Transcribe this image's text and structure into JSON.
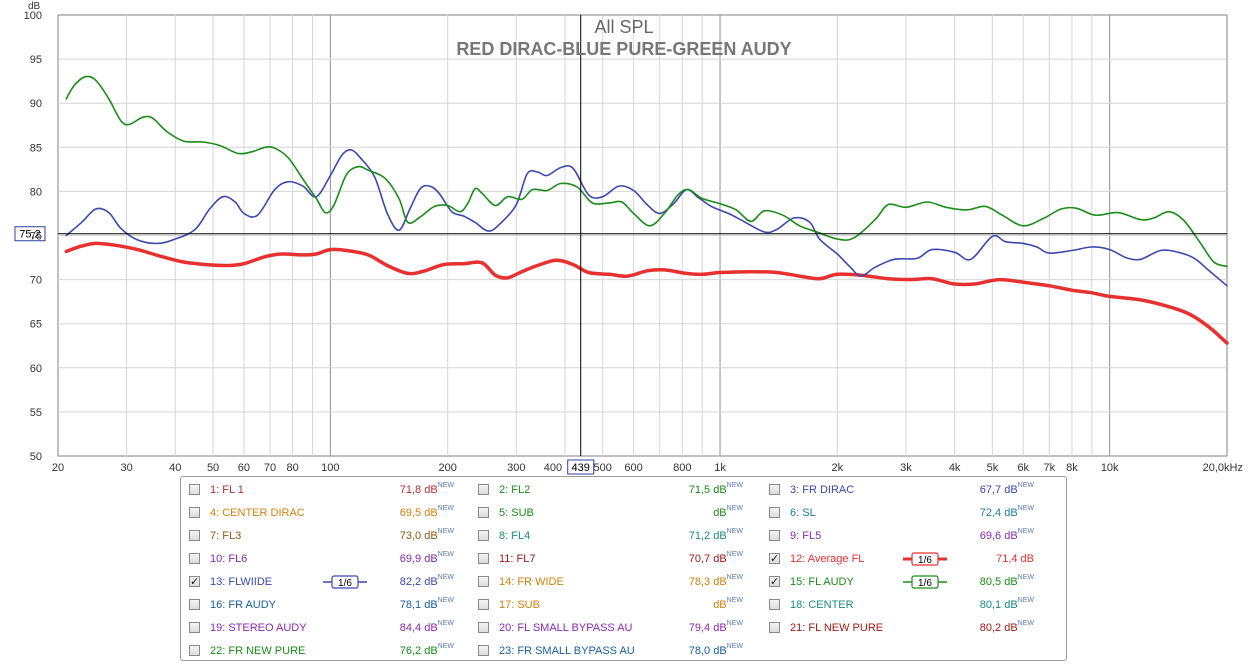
{
  "chart_data": {
    "type": "line",
    "title": "All SPL",
    "subtitle": "RED DIRAC-BLUE PURE-GREEN AUDY",
    "ylabel": "dB",
    "xlabel": "",
    "x_scale": "log",
    "xlim": [
      20,
      20000
    ],
    "ylim": [
      50,
      100
    ],
    "grid": true,
    "y_ticks": [
      "50",
      "55",
      "60",
      "65",
      "70",
      "75",
      "80",
      "85",
      "90",
      "95",
      "100"
    ],
    "x_ticks": [
      {
        "v": 20,
        "label": "20"
      },
      {
        "v": 30,
        "label": "30"
      },
      {
        "v": 40,
        "label": "40"
      },
      {
        "v": 50,
        "label": "50"
      },
      {
        "v": 60,
        "label": "60"
      },
      {
        "v": 70,
        "label": "70"
      },
      {
        "v": 80,
        "label": "80"
      },
      {
        "v": 100,
        "label": "100"
      },
      {
        "v": 200,
        "label": "200"
      },
      {
        "v": 300,
        "label": "300"
      },
      {
        "v": 400,
        "label": "400"
      },
      {
        "v": 500,
        "label": "500"
      },
      {
        "v": 600,
        "label": "600"
      },
      {
        "v": 800,
        "label": "800"
      },
      {
        "v": 1000,
        "label": "1k"
      },
      {
        "v": 2000,
        "label": "2k"
      },
      {
        "v": 3000,
        "label": "3k"
      },
      {
        "v": 4000,
        "label": "4k"
      },
      {
        "v": 5000,
        "label": "5k"
      },
      {
        "v": 6000,
        "label": "6k"
      },
      {
        "v": 7000,
        "label": "7k"
      },
      {
        "v": 8000,
        "label": "8k"
      },
      {
        "v": 10000,
        "label": "10k"
      },
      {
        "v": 20000,
        "label": "20,0kHz"
      }
    ],
    "cursor": {
      "x": 439,
      "x_label": "439",
      "y": 75.2,
      "y_label": "75,2"
    },
    "series": [
      {
        "name": "12: Average FL",
        "color": "#e83030",
        "width": 3.5,
        "points": [
          [
            21,
            73.2
          ],
          [
            23,
            73.8
          ],
          [
            25,
            74.1
          ],
          [
            28,
            73.9
          ],
          [
            32,
            73.4
          ],
          [
            37,
            72.6
          ],
          [
            42,
            72.0
          ],
          [
            48,
            71.7
          ],
          [
            55,
            71.6
          ],
          [
            60,
            71.8
          ],
          [
            68,
            72.6
          ],
          [
            75,
            72.9
          ],
          [
            85,
            72.8
          ],
          [
            92,
            72.9
          ],
          [
            100,
            73.4
          ],
          [
            110,
            73.3
          ],
          [
            125,
            72.8
          ],
          [
            140,
            71.6
          ],
          [
            158,
            70.7
          ],
          [
            175,
            71.0
          ],
          [
            195,
            71.7
          ],
          [
            220,
            71.8
          ],
          [
            245,
            71.9
          ],
          [
            265,
            70.5
          ],
          [
            285,
            70.2
          ],
          [
            310,
            70.9
          ],
          [
            340,
            71.6
          ],
          [
            380,
            72.2
          ],
          [
            420,
            71.7
          ],
          [
            460,
            70.8
          ],
          [
            520,
            70.6
          ],
          [
            580,
            70.4
          ],
          [
            650,
            71.0
          ],
          [
            720,
            71.1
          ],
          [
            820,
            70.7
          ],
          [
            900,
            70.6
          ],
          [
            1000,
            70.8
          ],
          [
            1200,
            70.9
          ],
          [
            1400,
            70.8
          ],
          [
            1600,
            70.4
          ],
          [
            1800,
            70.1
          ],
          [
            2000,
            70.6
          ],
          [
            2300,
            70.5
          ],
          [
            2700,
            70.1
          ],
          [
            3100,
            70.0
          ],
          [
            3500,
            70.1
          ],
          [
            4000,
            69.5
          ],
          [
            4500,
            69.5
          ],
          [
            5200,
            70.0
          ],
          [
            6000,
            69.7
          ],
          [
            7000,
            69.3
          ],
          [
            8000,
            68.8
          ],
          [
            9000,
            68.5
          ],
          [
            10000,
            68.1
          ],
          [
            12000,
            67.7
          ],
          [
            14000,
            67.0
          ],
          [
            16000,
            66.1
          ],
          [
            18000,
            64.6
          ],
          [
            20000,
            62.8
          ]
        ]
      },
      {
        "name": "13: FLWIIDE",
        "color": "#3b48b0",
        "width": 1.6,
        "points": [
          [
            21,
            75.0
          ],
          [
            23,
            76.5
          ],
          [
            25,
            78.0
          ],
          [
            27,
            77.6
          ],
          [
            29,
            75.8
          ],
          [
            32,
            74.5
          ],
          [
            36,
            74.1
          ],
          [
            40,
            74.6
          ],
          [
            45,
            75.7
          ],
          [
            49,
            78.0
          ],
          [
            53,
            79.4
          ],
          [
            57,
            78.8
          ],
          [
            60,
            77.5
          ],
          [
            65,
            77.3
          ],
          [
            72,
            80.2
          ],
          [
            78,
            81.1
          ],
          [
            85,
            80.6
          ],
          [
            92,
            79.4
          ],
          [
            100,
            81.8
          ],
          [
            107,
            84.1
          ],
          [
            113,
            84.7
          ],
          [
            120,
            83.7
          ],
          [
            130,
            81.6
          ],
          [
            140,
            77.5
          ],
          [
            150,
            75.6
          ],
          [
            160,
            78.0
          ],
          [
            170,
            80.3
          ],
          [
            180,
            80.6
          ],
          [
            190,
            79.8
          ],
          [
            205,
            77.7
          ],
          [
            220,
            77.2
          ],
          [
            235,
            76.5
          ],
          [
            255,
            75.5
          ],
          [
            275,
            76.5
          ],
          [
            300,
            78.5
          ],
          [
            320,
            82.0
          ],
          [
            340,
            82.2
          ],
          [
            360,
            81.8
          ],
          [
            390,
            82.7
          ],
          [
            420,
            82.6
          ],
          [
            460,
            79.6
          ],
          [
            500,
            79.4
          ],
          [
            550,
            80.6
          ],
          [
            600,
            80.1
          ],
          [
            650,
            78.5
          ],
          [
            700,
            77.5
          ],
          [
            760,
            78.6
          ],
          [
            820,
            80.2
          ],
          [
            880,
            79.3
          ],
          [
            950,
            78.3
          ],
          [
            1050,
            77.5
          ],
          [
            1150,
            76.6
          ],
          [
            1300,
            75.4
          ],
          [
            1400,
            75.7
          ],
          [
            1550,
            77.0
          ],
          [
            1700,
            76.5
          ],
          [
            1800,
            74.6
          ],
          [
            2000,
            72.9
          ],
          [
            2150,
            71.5
          ],
          [
            2300,
            70.4
          ],
          [
            2500,
            71.4
          ],
          [
            2800,
            72.3
          ],
          [
            3200,
            72.4
          ],
          [
            3500,
            73.4
          ],
          [
            4000,
            73.1
          ],
          [
            4400,
            72.3
          ],
          [
            5000,
            74.9
          ],
          [
            5400,
            74.3
          ],
          [
            6000,
            74.1
          ],
          [
            6500,
            73.7
          ],
          [
            7000,
            73.0
          ],
          [
            8000,
            73.3
          ],
          [
            9000,
            73.7
          ],
          [
            10000,
            73.4
          ],
          [
            11000,
            72.5
          ],
          [
            12000,
            72.3
          ],
          [
            13500,
            73.3
          ],
          [
            15000,
            73.1
          ],
          [
            16500,
            72.4
          ],
          [
            18000,
            71.0
          ],
          [
            20000,
            69.3
          ]
        ]
      },
      {
        "name": "15: FL AUDY",
        "color": "#1a8c1a",
        "width": 1.6,
        "points": [
          [
            21,
            90.5
          ],
          [
            22,
            92.0
          ],
          [
            23.5,
            93.0
          ],
          [
            25,
            92.6
          ],
          [
            27,
            90.5
          ],
          [
            29,
            88.0
          ],
          [
            30.5,
            87.6
          ],
          [
            33,
            88.4
          ],
          [
            35,
            88.3
          ],
          [
            38,
            86.8
          ],
          [
            42,
            85.7
          ],
          [
            47,
            85.6
          ],
          [
            52,
            85.2
          ],
          [
            58,
            84.3
          ],
          [
            63,
            84.5
          ],
          [
            68,
            85.0
          ],
          [
            72,
            84.9
          ],
          [
            78,
            83.8
          ],
          [
            85,
            81.4
          ],
          [
            92,
            79.2
          ],
          [
            97,
            77.6
          ],
          [
            102,
            78.4
          ],
          [
            110,
            81.9
          ],
          [
            118,
            82.8
          ],
          [
            125,
            82.4
          ],
          [
            138,
            81.5
          ],
          [
            150,
            79.2
          ],
          [
            158,
            76.5
          ],
          [
            170,
            77.1
          ],
          [
            185,
            78.3
          ],
          [
            200,
            78.4
          ],
          [
            215,
            77.7
          ],
          [
            225,
            78.6
          ],
          [
            235,
            80.3
          ],
          [
            245,
            79.8
          ],
          [
            265,
            78.4
          ],
          [
            285,
            79.4
          ],
          [
            310,
            79.1
          ],
          [
            330,
            80.2
          ],
          [
            360,
            80.1
          ],
          [
            390,
            80.9
          ],
          [
            430,
            80.5
          ],
          [
            470,
            78.7
          ],
          [
            520,
            78.7
          ],
          [
            560,
            78.8
          ],
          [
            600,
            77.5
          ],
          [
            660,
            76.1
          ],
          [
            720,
            77.5
          ],
          [
            780,
            79.6
          ],
          [
            830,
            80.2
          ],
          [
            900,
            79.2
          ],
          [
            1000,
            78.6
          ],
          [
            1100,
            77.9
          ],
          [
            1200,
            76.6
          ],
          [
            1300,
            77.8
          ],
          [
            1450,
            77.3
          ],
          [
            1600,
            76.1
          ],
          [
            1800,
            75.3
          ],
          [
            2000,
            74.6
          ],
          [
            2200,
            74.7
          ],
          [
            2500,
            76.8
          ],
          [
            2700,
            78.5
          ],
          [
            3000,
            78.2
          ],
          [
            3400,
            78.8
          ],
          [
            3800,
            78.2
          ],
          [
            4300,
            77.9
          ],
          [
            4800,
            78.3
          ],
          [
            5300,
            77.3
          ],
          [
            6000,
            76.1
          ],
          [
            6800,
            77.0
          ],
          [
            7500,
            78.0
          ],
          [
            8200,
            78.1
          ],
          [
            9200,
            77.3
          ],
          [
            10500,
            77.6
          ],
          [
            12000,
            76.8
          ],
          [
            13000,
            77.0
          ],
          [
            14200,
            77.7
          ],
          [
            15500,
            76.7
          ],
          [
            17000,
            74.3
          ],
          [
            18500,
            72.0
          ],
          [
            20000,
            71.5
          ]
        ]
      }
    ]
  },
  "legend": {
    "rows": [
      [
        {
          "label": "1: FL 1",
          "value": "71,8 dB",
          "sup": "NEW",
          "color": "#b03030",
          "checked": false
        },
        {
          "label": "2: FL2",
          "value": "71,5 dB",
          "sup": "NEW",
          "color": "#1a8c1a",
          "checked": false
        },
        {
          "label": "3: FR DIRAC",
          "value": "67,7 dB",
          "sup": "NEW",
          "color": "#3b48b0",
          "checked": false
        }
      ],
      [
        {
          "label": "4: CENTER DIRAC",
          "value": "69,5 dB",
          "sup": "NEW",
          "color": "#d47f0e",
          "checked": false
        },
        {
          "label": "5: SUB",
          "value": "dB",
          "sup": "NEW",
          "color": "#1a8c1a",
          "checked": false
        },
        {
          "label": "6: SL",
          "value": "72,4 dB",
          "sup": "NEW",
          "color": "#1a7fa0",
          "checked": false
        }
      ],
      [
        {
          "label": "7: FL3",
          "value": "73,0 dB",
          "sup": "NEW",
          "color": "#8a5a16",
          "checked": false
        },
        {
          "label": "8: FL4",
          "value": "71,2 dB",
          "sup": "NEW",
          "color": "#1a8c7c",
          "checked": false
        },
        {
          "label": "9: FL5",
          "value": "69,6 dB",
          "sup": "NEW",
          "color": "#8a2ab0",
          "checked": false
        }
      ],
      [
        {
          "label": "10: FL6",
          "value": "69,9 dB",
          "sup": "NEW",
          "color": "#8a2ab0",
          "checked": false
        },
        {
          "label": "11: FL7",
          "value": "70,7 dB",
          "sup": "NEW",
          "color": "#a01a1a",
          "checked": false
        },
        {
          "label": "12: Average FL",
          "value": "71,4 dB",
          "sup": "",
          "color": "#e83030",
          "checked": true,
          "smooth": "1/6"
        }
      ],
      [
        {
          "label": "13: FLWIIDE",
          "value": "82,2 dB",
          "sup": "NEW",
          "color": "#3b48b0",
          "checked": true,
          "smooth": "1/6"
        },
        {
          "label": "14: FR WIDE",
          "value": "78,3 dB",
          "sup": "NEW",
          "color": "#d47f0e",
          "checked": false
        },
        {
          "label": "15: FL AUDY",
          "value": "80,5 dB",
          "sup": "NEW",
          "color": "#1a8c1a",
          "checked": true,
          "smooth": "1/6"
        }
      ],
      [
        {
          "label": "16: FR AUDY",
          "value": "78,1 dB",
          "sup": "NEW",
          "color": "#1a5fa0",
          "checked": false
        },
        {
          "label": "17: SUB",
          "value": "dB",
          "sup": "NEW",
          "color": "#d47f0e",
          "checked": false
        },
        {
          "label": "18: CENTER",
          "value": "80,1 dB",
          "sup": "NEW",
          "color": "#1a8c7c",
          "checked": false
        }
      ],
      [
        {
          "label": "19: STEREO AUDY",
          "value": "84,4 dB",
          "sup": "NEW",
          "color": "#8a2ab0",
          "checked": false
        },
        {
          "label": "20: FL SMALL BYPASS AU",
          "value": "79,4 dB",
          "sup": "NEW",
          "color": "#8a2ab0",
          "checked": false
        },
        {
          "label": "21: FL NEW PURE",
          "value": "80,2 dB",
          "sup": "NEW",
          "color": "#a01a1a",
          "checked": false
        }
      ],
      [
        {
          "label": "22: FR NEW PURE",
          "value": "76,2 dB",
          "sup": "NEW",
          "color": "#1a8c1a",
          "checked": false
        },
        {
          "label": "23: FR SMALL BYPASS AU",
          "value": "78,0 dB",
          "sup": "NEW",
          "color": "#1a5fa0",
          "checked": false
        }
      ]
    ]
  }
}
